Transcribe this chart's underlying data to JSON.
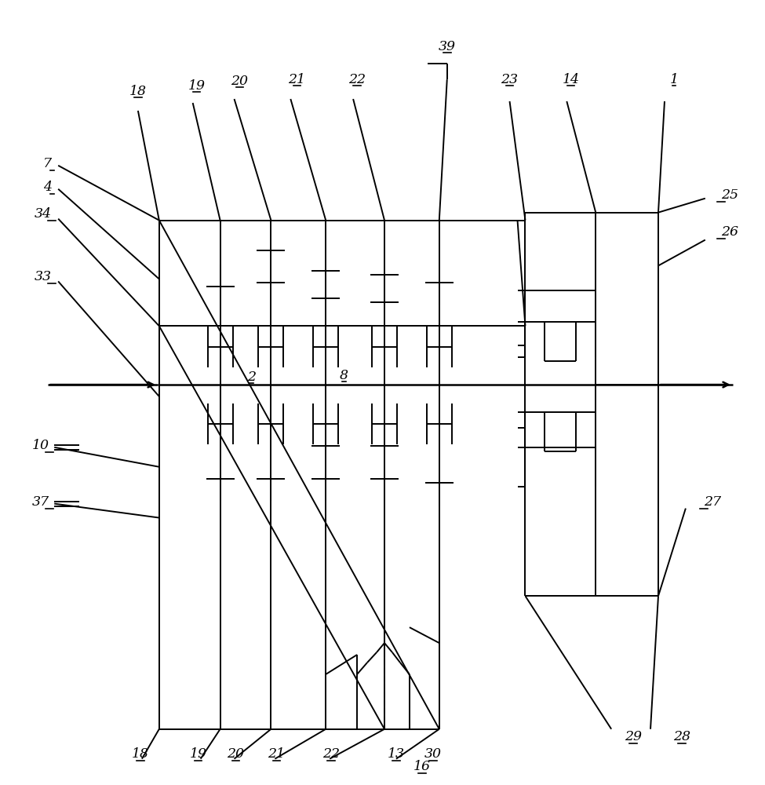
{
  "bg_color": "#ffffff",
  "lw": 1.4,
  "shaft_lw": 1.8,
  "figsize": [
    9.75,
    10.0
  ],
  "dpi": 100
}
